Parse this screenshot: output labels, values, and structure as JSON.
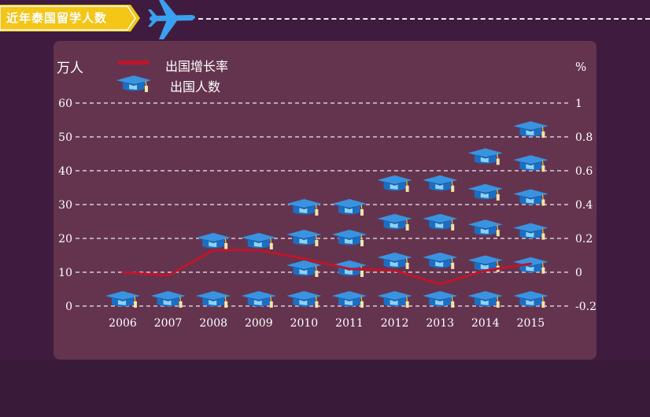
{
  "header": {
    "title": "近年泰国留学人数",
    "banner_color": "#f5c518",
    "icon": "airplane-icon",
    "icon_color": "#3aa0f0"
  },
  "chart_data": {
    "type": "bar",
    "style": "pictogram",
    "pictogram_icon": "graduation-cap-icon",
    "categories": [
      "2006",
      "2007",
      "2008",
      "2009",
      "2010",
      "2011",
      "2012",
      "2013",
      "2014",
      "2015"
    ],
    "series": [
      {
        "name": "出国人数",
        "axis": "left",
        "unit": "万人",
        "values": [
          10,
          10,
          20,
          20,
          30,
          30,
          37,
          37,
          45,
          53
        ]
      },
      {
        "name": "出国增长率",
        "axis": "right",
        "type": "line",
        "color": "#c0152a",
        "values": [
          0,
          -0.02,
          0.13,
          0.13,
          0.08,
          0.02,
          0.01,
          -0.07,
          0.01,
          0.05
        ]
      }
    ],
    "left_axis": {
      "label": "万人",
      "ticks": [
        "0",
        "10",
        "20",
        "30",
        "40",
        "50",
        "60"
      ]
    },
    "right_axis": {
      "label": "%",
      "ticks": [
        "-0.2",
        "0",
        "0.2",
        "0.4",
        "0.6",
        "0.8",
        "1"
      ]
    },
    "grid": true,
    "legend": "top-left",
    "colors": {
      "cap": "#1a6fc4",
      "cap_top": "#3a93e0",
      "line": "#c0152a",
      "grid": "#f0e6f0"
    }
  }
}
